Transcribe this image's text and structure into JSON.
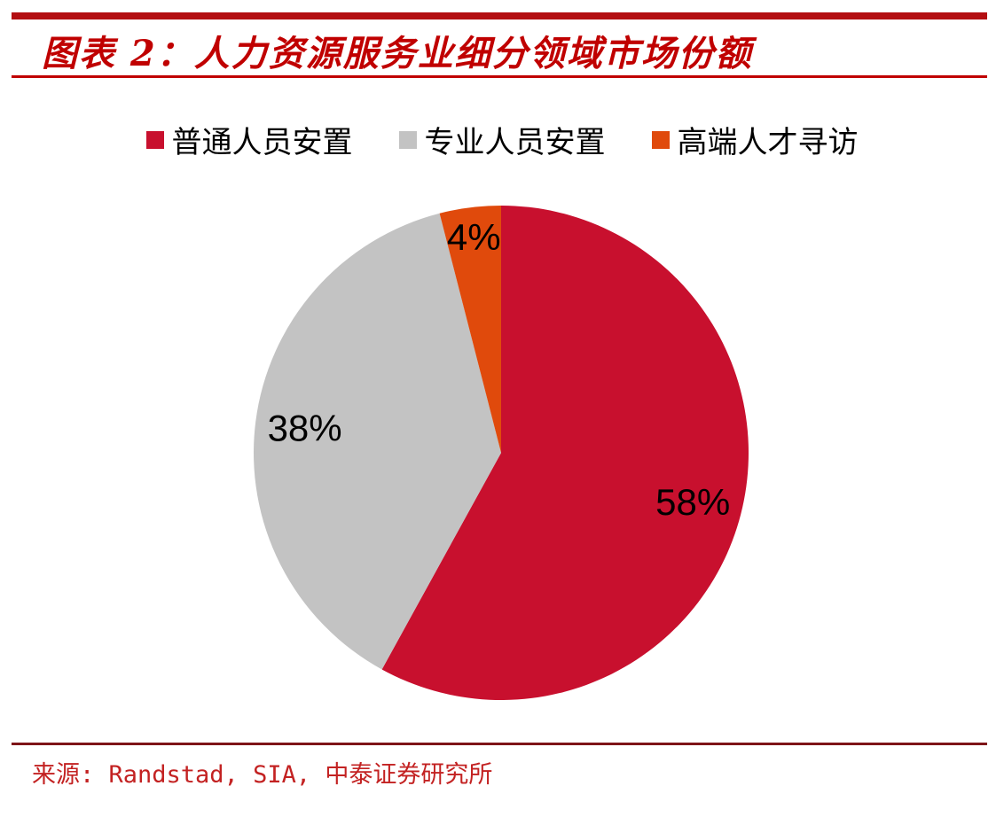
{
  "header": {
    "title": "图表 2：人力资源服务业细分领域市场份额",
    "title_color": "#C00000",
    "top_rule_color": "#B30E11"
  },
  "legend": {
    "items": [
      {
        "label": "普通人员安置",
        "color": "#C8102E"
      },
      {
        "label": "专业人员安置",
        "color": "#C3C3C3"
      },
      {
        "label": "高端人才寻访",
        "color": "#E04A0C"
      }
    ]
  },
  "chart_data": {
    "type": "pie",
    "title": "人力资源服务业细分领域市场份额",
    "categories": [
      "普通人员安置",
      "专业人员安置",
      "高端人才寻访"
    ],
    "values": [
      58,
      38,
      4
    ],
    "data_labels": [
      "58%",
      "38%",
      "4%"
    ],
    "colors": [
      "#C8102E",
      "#C3C3C3",
      "#E04A0C"
    ],
    "start_angle_deg": 0,
    "direction": "clockwise",
    "label_color": "#000000",
    "legend_position": "top"
  },
  "footer": {
    "source": "来源: Randstad, SIA, 中泰证券研究所",
    "source_color": "#C32222",
    "rule_color": "#7E1418"
  }
}
